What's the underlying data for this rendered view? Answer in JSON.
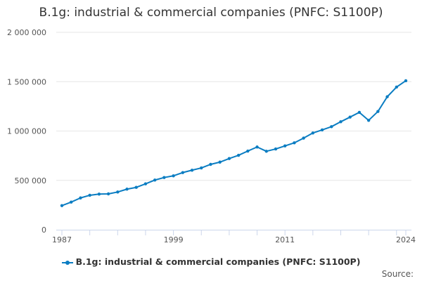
{
  "chart_data": {
    "type": "line",
    "title": "B.1g: industrial & commercial companies (PNFC: S1100P)",
    "xlabel": "",
    "ylabel": "",
    "ylim": [
      0,
      2000000
    ],
    "y_ticks": [
      0,
      500000,
      1000000,
      1500000,
      2000000
    ],
    "y_tick_labels": [
      "0",
      "500 000",
      "1 000 000",
      "1 500 000",
      "2 000 000"
    ],
    "x_tick_labels": [
      "1987",
      "1999",
      "2011",
      "2024"
    ],
    "grid": true,
    "legend_position": "bottom",
    "color": "#0b7dc2",
    "x": [
      1987,
      1988,
      1989,
      1990,
      1991,
      1992,
      1993,
      1994,
      1995,
      1996,
      1997,
      1998,
      1999,
      2000,
      2001,
      2002,
      2003,
      2004,
      2005,
      2006,
      2007,
      2008,
      2009,
      2010,
      2011,
      2012,
      2013,
      2014,
      2015,
      2016,
      2017,
      2018,
      2019,
      2020,
      2021,
      2022,
      2023,
      2024
    ],
    "series": [
      {
        "name": "B.1g: industrial & commercial companies (PNFC: S1100P)",
        "values": [
          244000,
          280000,
          322000,
          349000,
          361000,
          363000,
          382000,
          411000,
          429000,
          465000,
          503000,
          529000,
          546000,
          579000,
          603000,
          626000,
          662000,
          685000,
          721000,
          754000,
          797000,
          838000,
          795000,
          818000,
          849000,
          880000,
          928000,
          980000,
          1011000,
          1044000,
          1094000,
          1141000,
          1189000,
          1108000,
          1198000,
          1347000,
          1445000,
          1509000
        ]
      }
    ]
  },
  "source_label": "Source:"
}
